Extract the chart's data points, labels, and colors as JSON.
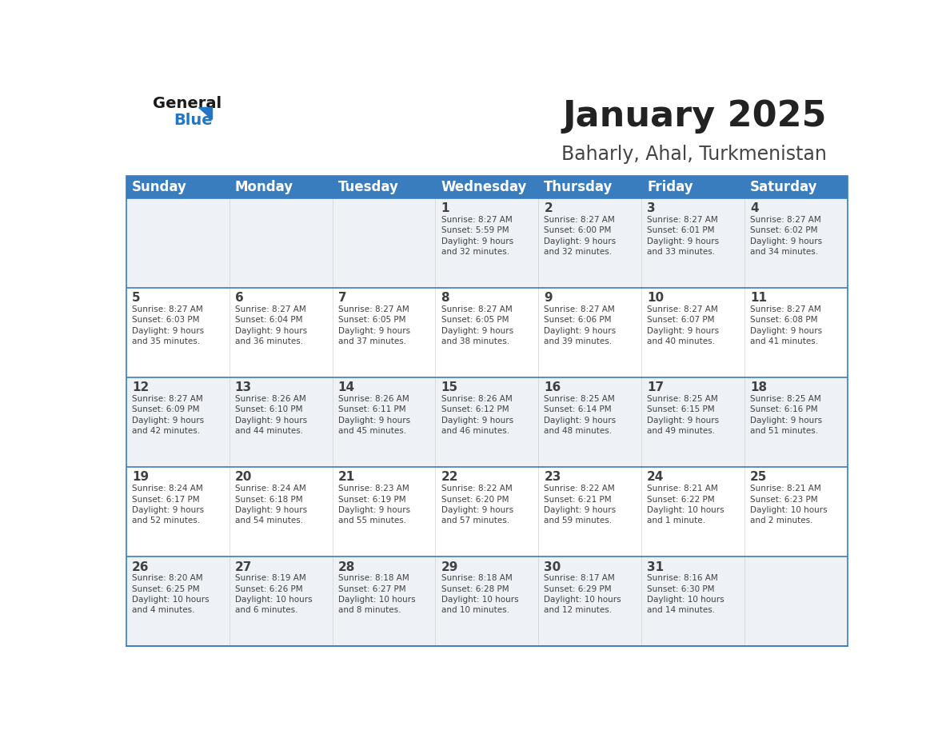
{
  "title": "January 2025",
  "subtitle": "Baharly, Ahal, Turkmenistan",
  "days_of_week": [
    "Sunday",
    "Monday",
    "Tuesday",
    "Wednesday",
    "Thursday",
    "Friday",
    "Saturday"
  ],
  "header_bg": "#3a7dbf",
  "header_text_color": "#ffffff",
  "cell_bg_light": "#eef2f7",
  "cell_bg_white": "#ffffff",
  "row_line_color": "#3a7dbf",
  "text_color": "#404040",
  "title_color": "#222222",
  "subtitle_color": "#444444",
  "logo_general_color": "#1a1a1a",
  "logo_blue_color": "#2176c7",
  "calendar_data": [
    [
      null,
      null,
      null,
      {
        "day": 1,
        "sunrise": "8:27 AM",
        "sunset": "5:59 PM",
        "daylight": "9 hours",
        "daylight2": "and 32 minutes."
      },
      {
        "day": 2,
        "sunrise": "8:27 AM",
        "sunset": "6:00 PM",
        "daylight": "9 hours",
        "daylight2": "and 32 minutes."
      },
      {
        "day": 3,
        "sunrise": "8:27 AM",
        "sunset": "6:01 PM",
        "daylight": "9 hours",
        "daylight2": "and 33 minutes."
      },
      {
        "day": 4,
        "sunrise": "8:27 AM",
        "sunset": "6:02 PM",
        "daylight": "9 hours",
        "daylight2": "and 34 minutes."
      }
    ],
    [
      {
        "day": 5,
        "sunrise": "8:27 AM",
        "sunset": "6:03 PM",
        "daylight": "9 hours",
        "daylight2": "and 35 minutes."
      },
      {
        "day": 6,
        "sunrise": "8:27 AM",
        "sunset": "6:04 PM",
        "daylight": "9 hours",
        "daylight2": "and 36 minutes."
      },
      {
        "day": 7,
        "sunrise": "8:27 AM",
        "sunset": "6:05 PM",
        "daylight": "9 hours",
        "daylight2": "and 37 minutes."
      },
      {
        "day": 8,
        "sunrise": "8:27 AM",
        "sunset": "6:05 PM",
        "daylight": "9 hours",
        "daylight2": "and 38 minutes."
      },
      {
        "day": 9,
        "sunrise": "8:27 AM",
        "sunset": "6:06 PM",
        "daylight": "9 hours",
        "daylight2": "and 39 minutes."
      },
      {
        "day": 10,
        "sunrise": "8:27 AM",
        "sunset": "6:07 PM",
        "daylight": "9 hours",
        "daylight2": "and 40 minutes."
      },
      {
        "day": 11,
        "sunrise": "8:27 AM",
        "sunset": "6:08 PM",
        "daylight": "9 hours",
        "daylight2": "and 41 minutes."
      }
    ],
    [
      {
        "day": 12,
        "sunrise": "8:27 AM",
        "sunset": "6:09 PM",
        "daylight": "9 hours",
        "daylight2": "and 42 minutes."
      },
      {
        "day": 13,
        "sunrise": "8:26 AM",
        "sunset": "6:10 PM",
        "daylight": "9 hours",
        "daylight2": "and 44 minutes."
      },
      {
        "day": 14,
        "sunrise": "8:26 AM",
        "sunset": "6:11 PM",
        "daylight": "9 hours",
        "daylight2": "and 45 minutes."
      },
      {
        "day": 15,
        "sunrise": "8:26 AM",
        "sunset": "6:12 PM",
        "daylight": "9 hours",
        "daylight2": "and 46 minutes."
      },
      {
        "day": 16,
        "sunrise": "8:25 AM",
        "sunset": "6:14 PM",
        "daylight": "9 hours",
        "daylight2": "and 48 minutes."
      },
      {
        "day": 17,
        "sunrise": "8:25 AM",
        "sunset": "6:15 PM",
        "daylight": "9 hours",
        "daylight2": "and 49 minutes."
      },
      {
        "day": 18,
        "sunrise": "8:25 AM",
        "sunset": "6:16 PM",
        "daylight": "9 hours",
        "daylight2": "and 51 minutes."
      }
    ],
    [
      {
        "day": 19,
        "sunrise": "8:24 AM",
        "sunset": "6:17 PM",
        "daylight": "9 hours",
        "daylight2": "and 52 minutes."
      },
      {
        "day": 20,
        "sunrise": "8:24 AM",
        "sunset": "6:18 PM",
        "daylight": "9 hours",
        "daylight2": "and 54 minutes."
      },
      {
        "day": 21,
        "sunrise": "8:23 AM",
        "sunset": "6:19 PM",
        "daylight": "9 hours",
        "daylight2": "and 55 minutes."
      },
      {
        "day": 22,
        "sunrise": "8:22 AM",
        "sunset": "6:20 PM",
        "daylight": "9 hours",
        "daylight2": "and 57 minutes."
      },
      {
        "day": 23,
        "sunrise": "8:22 AM",
        "sunset": "6:21 PM",
        "daylight": "9 hours",
        "daylight2": "and 59 minutes."
      },
      {
        "day": 24,
        "sunrise": "8:21 AM",
        "sunset": "6:22 PM",
        "daylight": "10 hours",
        "daylight2": "and 1 minute."
      },
      {
        "day": 25,
        "sunrise": "8:21 AM",
        "sunset": "6:23 PM",
        "daylight": "10 hours",
        "daylight2": "and 2 minutes."
      }
    ],
    [
      {
        "day": 26,
        "sunrise": "8:20 AM",
        "sunset": "6:25 PM",
        "daylight": "10 hours",
        "daylight2": "and 4 minutes."
      },
      {
        "day": 27,
        "sunrise": "8:19 AM",
        "sunset": "6:26 PM",
        "daylight": "10 hours",
        "daylight2": "and 6 minutes."
      },
      {
        "day": 28,
        "sunrise": "8:18 AM",
        "sunset": "6:27 PM",
        "daylight": "10 hours",
        "daylight2": "and 8 minutes."
      },
      {
        "day": 29,
        "sunrise": "8:18 AM",
        "sunset": "6:28 PM",
        "daylight": "10 hours",
        "daylight2": "and 10 minutes."
      },
      {
        "day": 30,
        "sunrise": "8:17 AM",
        "sunset": "6:29 PM",
        "daylight": "10 hours",
        "daylight2": "and 12 minutes."
      },
      {
        "day": 31,
        "sunrise": "8:16 AM",
        "sunset": "6:30 PM",
        "daylight": "10 hours",
        "daylight2": "and 14 minutes."
      },
      null
    ]
  ]
}
